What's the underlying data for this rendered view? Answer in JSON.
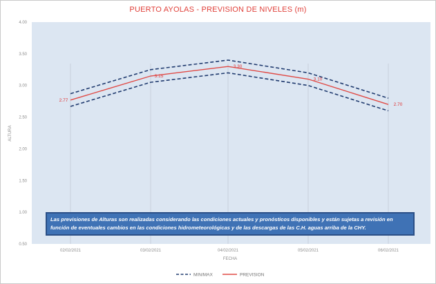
{
  "chart_data": {
    "type": "line",
    "title": "PUERTO AYOLAS - PREVISION DE NIVELES (m)",
    "xlabel": "FECHA",
    "ylabel": "ALTURA",
    "categories": [
      "02/02/2021",
      "03/02/2021",
      "04/02/2021",
      "05/02/2021",
      "06/02/2021"
    ],
    "ylim": [
      0.5,
      4.0
    ],
    "yticks": [
      "0.50",
      "1.00",
      "1.50",
      "2.00",
      "2.50",
      "3.00",
      "3.50",
      "4.00"
    ],
    "grid": "vertical",
    "legend_position": "bottom",
    "series": [
      {
        "name": "MIN/MAX",
        "style": "dashed",
        "color": "#1f3a6e",
        "values": [
          2.87,
          3.25,
          3.4,
          3.2,
          2.8
        ]
      },
      {
        "name": "MIN/MAX",
        "style": "dashed",
        "color": "#1f3a6e",
        "legend": false,
        "values": [
          2.67,
          3.05,
          3.2,
          3.0,
          2.6
        ]
      },
      {
        "name": "PREVISION",
        "style": "solid",
        "color": "#e04a45",
        "values": [
          2.77,
          3.15,
          3.3,
          3.1,
          2.7
        ]
      }
    ],
    "data_labels": [
      "2.77",
      "3.15",
      "3.30",
      "3.10",
      "2.70"
    ],
    "plot_background": "#dce6f2"
  },
  "note": "Las previsiones de Alturas son realizadas considerando las condiciones actuales y pronósticos disponibles y están sujetas a revisión en función de eventuales cambios en las condiciones hidrometeorológicas y de las descargas de las C.H. aguas arriba de la CHY."
}
